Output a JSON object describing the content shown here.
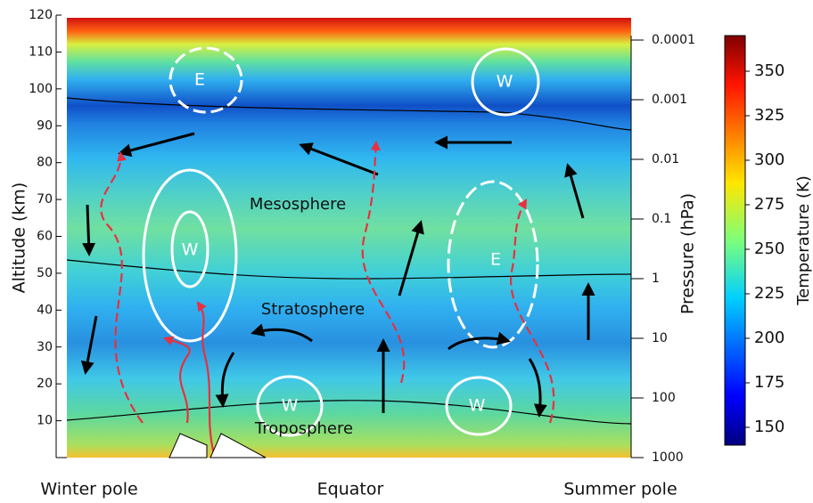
{
  "y_axis": {
    "label": "Altitude (km)",
    "lim": [
      0,
      120
    ],
    "ticks": [
      10,
      20,
      30,
      40,
      50,
      60,
      70,
      80,
      90,
      100,
      110,
      120
    ]
  },
  "y2_axis": {
    "label": "Pressure (hPa)",
    "ticks": [
      0.0001,
      0.001,
      0.01,
      0.1,
      1,
      10,
      100,
      1000
    ]
  },
  "colorbar": {
    "label": "Temperature (K)",
    "lim": [
      140,
      370
    ],
    "ticks": [
      150,
      175,
      200,
      225,
      250,
      275,
      300,
      325,
      350
    ]
  },
  "regions": [
    "Mesosphere",
    "Stratosphere",
    "Troposphere"
  ],
  "wind_labels": [
    "E",
    "W",
    "W",
    "E",
    "W",
    "W"
  ],
  "x_labels": [
    "Winter pole",
    "Equator",
    "Summer pole"
  ]
}
